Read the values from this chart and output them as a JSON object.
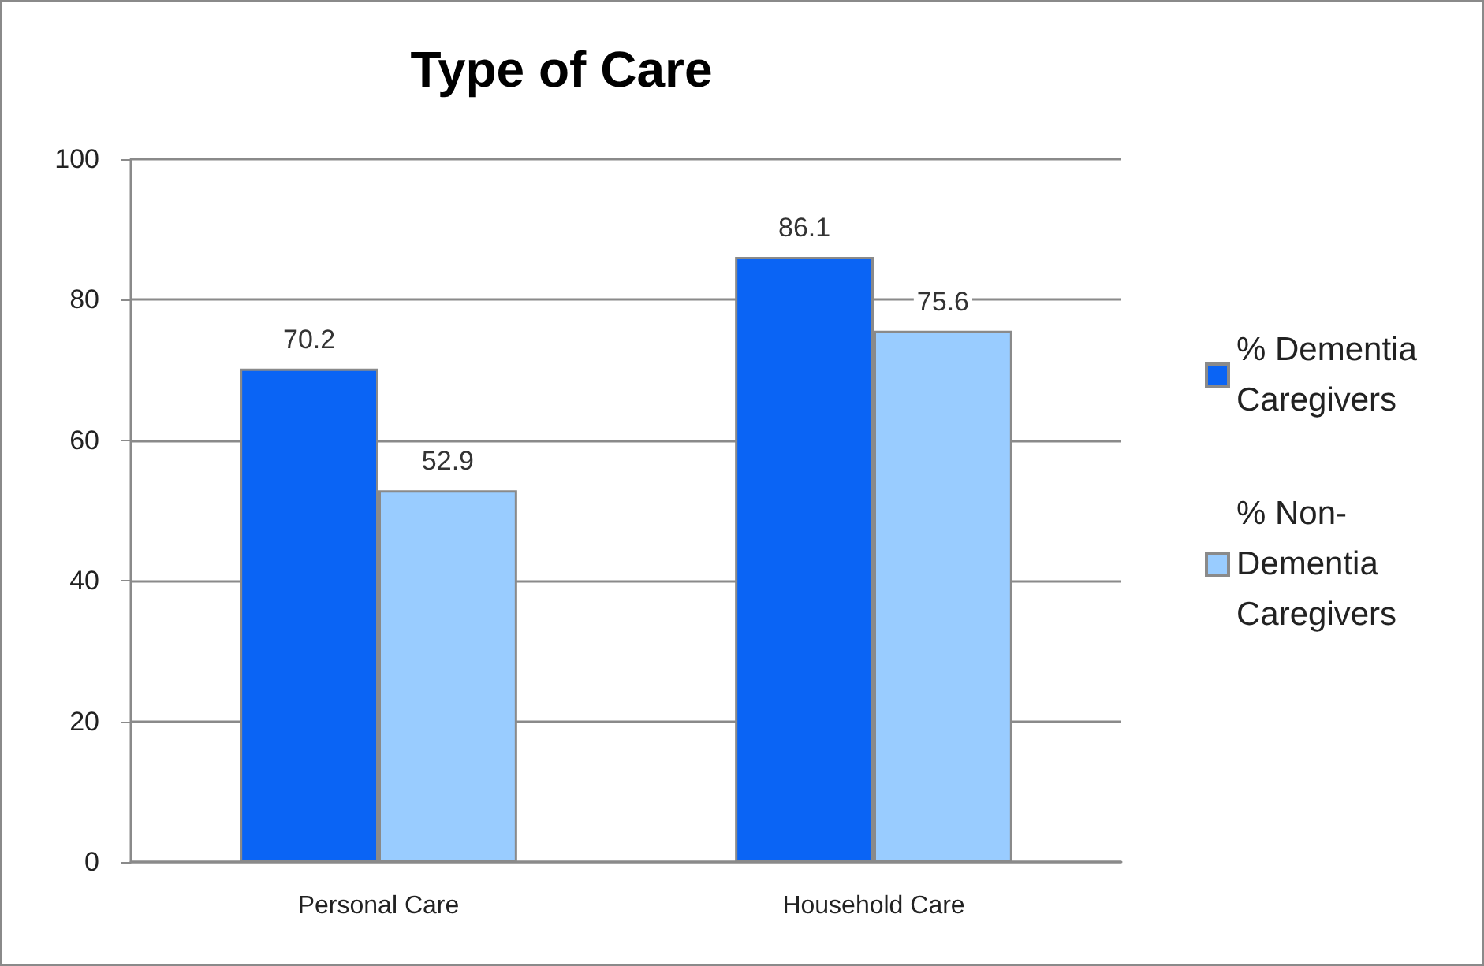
{
  "chart_data": {
    "type": "bar",
    "title": "Type of Care",
    "categories": [
      "Personal Care",
      "Household Care"
    ],
    "series": [
      {
        "name": "% Dementia Caregivers",
        "color": "#0a64f5",
        "values": [
          70.2,
          86.1
        ]
      },
      {
        "name": "% Non-Dementia Caregivers",
        "color": "#99ccff",
        "values": [
          52.9,
          75.6
        ]
      }
    ],
    "ylim": [
      0,
      100
    ],
    "yticks": [
      0,
      20,
      40,
      60,
      80,
      100
    ],
    "grid": "y",
    "legend": "right",
    "data_labels": true
  }
}
